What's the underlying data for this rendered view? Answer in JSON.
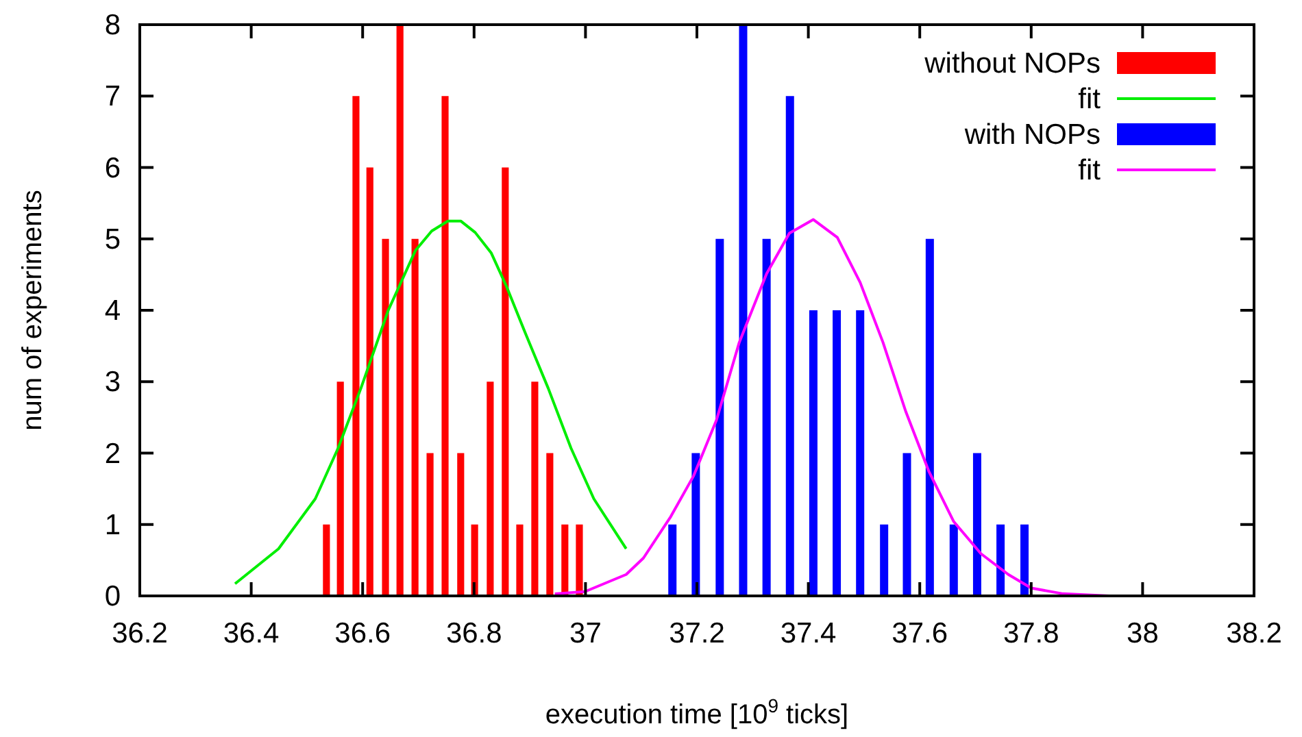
{
  "chart_data": {
    "type": "bar",
    "xlabel": "execution time [10$^{9}$ ticks]",
    "ylabel": "num of experiments",
    "xlim": [
      36.2,
      38.2
    ],
    "xticks": [
      36.2,
      36.4,
      36.6,
      36.8,
      37,
      37.2,
      37.4,
      37.6,
      37.8,
      38,
      38.2
    ],
    "ylim": [
      0,
      8
    ],
    "yticks": [
      0,
      1,
      2,
      3,
      4,
      5,
      6,
      7,
      8
    ],
    "grid": false,
    "legend": "top right",
    "series": [
      {
        "name": "without NOPs",
        "color": "#ff0000",
        "x": [
          36.535,
          36.56,
          36.588,
          36.613,
          36.641,
          36.667,
          36.694,
          36.721,
          36.748,
          36.776,
          36.801,
          36.829,
          36.856,
          36.882,
          36.909,
          36.936,
          36.963,
          36.989
        ],
        "values": [
          1,
          3,
          7,
          6,
          5,
          8,
          5,
          2,
          7,
          2,
          1,
          3,
          6,
          1,
          3,
          2,
          1,
          1
        ]
      },
      {
        "name": "fit",
        "type": "line",
        "color": "#00ee00",
        "x": [
          36.371,
          36.449,
          36.515,
          36.556,
          36.597,
          36.646,
          36.695,
          36.724,
          36.753,
          36.776,
          36.802,
          36.831,
          36.859,
          36.892,
          36.933,
          36.974,
          37.015,
          37.073
        ],
        "values": [
          0.17,
          0.66,
          1.36,
          2.07,
          2.91,
          4.0,
          4.84,
          5.11,
          5.25,
          5.25,
          5.09,
          4.8,
          4.32,
          3.68,
          2.91,
          2.07,
          1.36,
          0.66
        ]
      },
      {
        "name": "with NOPs",
        "color": "#0000ff",
        "x": [
          37.156,
          37.198,
          37.241,
          37.283,
          37.325,
          37.367,
          37.409,
          37.451,
          37.493,
          37.536,
          37.577,
          37.618,
          37.661,
          37.703,
          37.745,
          37.788
        ],
        "values": [
          1,
          2,
          5,
          8,
          5,
          7,
          4,
          4,
          4,
          1,
          2,
          5,
          1,
          2,
          1,
          1
        ]
      },
      {
        "name": "fit",
        "type": "line",
        "color": "#ff00ff",
        "x": [
          36.945,
          36.999,
          37.073,
          37.104,
          37.153,
          37.194,
          37.235,
          37.276,
          37.325,
          37.366,
          37.409,
          37.452,
          37.493,
          37.534,
          37.575,
          37.616,
          37.661,
          37.71,
          37.759,
          37.8,
          37.857,
          37.94
        ],
        "values": [
          0.03,
          0.06,
          0.3,
          0.53,
          1.11,
          1.68,
          2.46,
          3.55,
          4.51,
          5.08,
          5.27,
          5.02,
          4.39,
          3.55,
          2.58,
          1.75,
          1.04,
          0.59,
          0.3,
          0.11,
          0.03,
          0
        ]
      }
    ]
  }
}
